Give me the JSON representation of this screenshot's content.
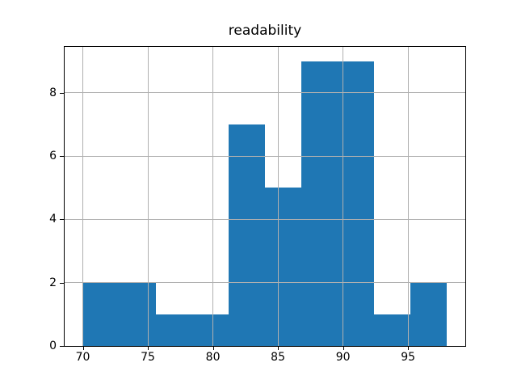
{
  "chart_data": {
    "type": "bar",
    "subtype": "histogram",
    "title": "readability",
    "xlabel": "",
    "ylabel": "",
    "bin_edges": [
      70,
      72.8,
      75.6,
      78.4,
      81.2,
      84.0,
      86.8,
      89.6,
      92.4,
      95.2,
      98.0
    ],
    "counts": [
      2,
      2,
      1,
      1,
      7,
      5,
      9,
      9,
      1,
      2
    ],
    "x_ticks": [
      70,
      75,
      80,
      85,
      90,
      95
    ],
    "y_ticks": [
      0,
      2,
      4,
      6,
      8
    ],
    "xlim": [
      68.6,
      99.4
    ],
    "ylim": [
      0,
      9.45
    ],
    "grid": true,
    "grid_on_top_of_bars": true,
    "legend": false,
    "bar_color": "#1f77b4",
    "grid_color": "#b0b0b0",
    "spine_color": "#000000",
    "text_color": "#000000",
    "background_color": "#ffffff"
  }
}
